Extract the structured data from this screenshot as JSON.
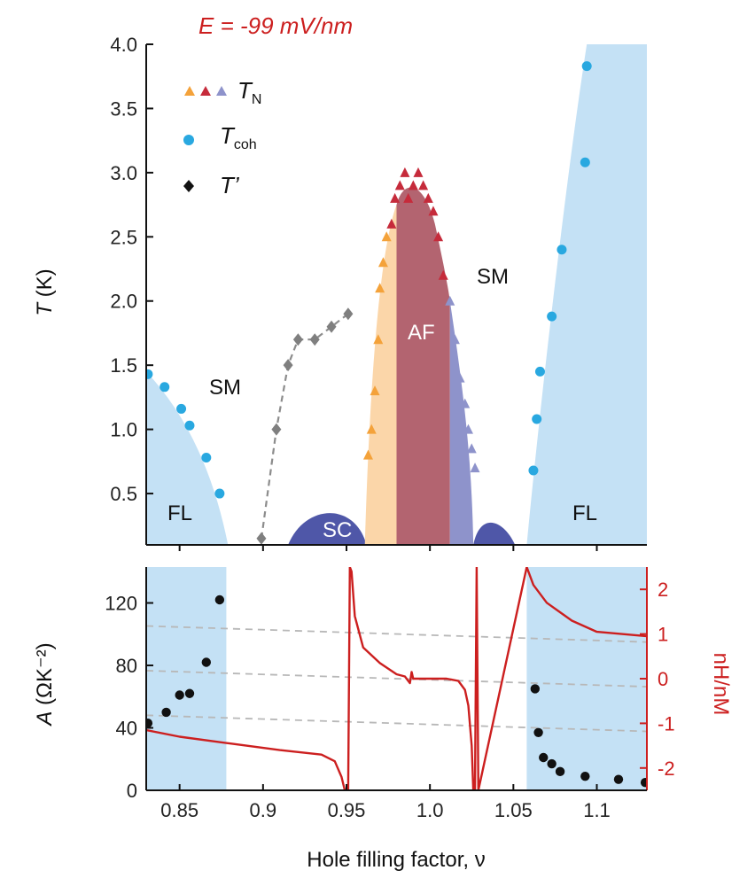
{
  "title": "E = -99 mV/nm",
  "colors": {
    "fl": "#c4e1f5",
    "sc": "#4f57a8",
    "af": "#b36470",
    "tn_orange": "#f4a23a",
    "tn_red": "#c62b3b",
    "tn_purple": "#8e93cb",
    "tcoh": "#29a8e0",
    "tprime": "#7f7f7f",
    "nh": "#cc1f1f"
  },
  "xaxis": {
    "label": "Hole filling factor, ν",
    "ticks": [
      "0.85",
      "0.9",
      "0.95",
      "1.0",
      "1.05",
      "1.1"
    ]
  },
  "regions": {
    "fl_left": "FL",
    "fl_right": "FL",
    "sm_left": "SM",
    "sm_right": "SM",
    "sc": "SC",
    "af": "AF"
  },
  "chart_data": [
    {
      "type": "scatter",
      "title": "E = -99 mV/nm",
      "ylabel": "T (K)",
      "xlim": [
        0.83,
        1.13
      ],
      "ylim": [
        0.1,
        4.0
      ],
      "yticks": [
        "0.5",
        "1.0",
        "1.5",
        "2.0",
        "2.5",
        "3.0",
        "3.5",
        "4.0"
      ],
      "legend": {
        "position": "top-left",
        "entries": [
          {
            "label": "T",
            "sub": "N",
            "marker": "triangle"
          },
          {
            "label": "T",
            "sub": "coh",
            "marker": "circle"
          },
          {
            "label": "T’",
            "sub": "",
            "marker": "diamond"
          }
        ]
      },
      "series": [
        {
          "marker": "triangle-orange",
          "x": [
            0.963,
            0.965,
            0.967,
            0.969,
            0.97,
            0.972,
            0.974
          ],
          "y": [
            0.8,
            1.0,
            1.3,
            1.7,
            2.1,
            2.3,
            2.5
          ]
        },
        {
          "marker": "triangle-red",
          "x": [
            0.977,
            0.979,
            0.982,
            0.985,
            0.987,
            0.99,
            0.993,
            0.996,
            0.999,
            1.002,
            1.005,
            1.008
          ],
          "y": [
            2.6,
            2.8,
            2.9,
            3.0,
            2.8,
            2.9,
            3.0,
            2.9,
            2.8,
            2.7,
            2.5,
            2.2
          ]
        },
        {
          "marker": "triangle-purple",
          "x": [
            1.012,
            1.015,
            1.018,
            1.021,
            1.023,
            1.025,
            1.027
          ],
          "y": [
            2.0,
            1.7,
            1.4,
            1.2,
            1.0,
            0.85,
            0.7
          ]
        },
        {
          "marker": "circle-blue-left",
          "x": [
            0.831,
            0.841,
            0.851,
            0.856,
            0.866,
            0.874
          ],
          "y": [
            1.43,
            1.33,
            1.16,
            1.03,
            0.78,
            0.5
          ]
        },
        {
          "marker": "circle-blue-right",
          "x": [
            1.062,
            1.064,
            1.066,
            1.073,
            1.079,
            1.093
          ],
          "y": [
            0.68,
            1.08,
            1.45,
            1.88,
            2.4,
            3.08
          ]
        },
        {
          "marker": "circle-blue-top",
          "x": [
            1.094
          ],
          "y": [
            3.83
          ]
        },
        {
          "marker": "diamond-gray",
          "x": [
            0.899,
            0.908,
            0.915,
            0.921,
            0.931,
            0.941,
            0.951
          ],
          "y": [
            0.15,
            1.0,
            1.5,
            1.7,
            1.7,
            1.8,
            1.9
          ]
        }
      ]
    },
    {
      "type": "scatter",
      "xlabel": "Hole filling factor, ν",
      "ylabel": "A (ΩK⁻²)",
      "y2label": "nH/nM",
      "xlim": [
        0.83,
        1.13
      ],
      "ylim": [
        0,
        143
      ],
      "y2lim": [
        -2.5,
        2.5
      ],
      "yticks": [
        "0",
        "40",
        "80",
        "120"
      ],
      "y2ticks": [
        "-2",
        "-1",
        "0",
        "1",
        "2"
      ],
      "series": [
        {
          "name": "A",
          "x": [
            0.831,
            0.842,
            0.85,
            0.856,
            0.866,
            0.874,
            1.063,
            1.065,
            1.068,
            1.073,
            1.078,
            1.093,
            1.113,
            1.129
          ],
          "y": [
            43,
            50,
            61,
            62,
            82,
            122,
            65,
            37,
            21,
            17,
            12,
            9,
            7,
            5
          ]
        },
        {
          "name": "nH/nM",
          "x": [
            0.83,
            0.85,
            0.88,
            0.91,
            0.935,
            0.943,
            0.947,
            0.949,
            0.951,
            0.952,
            0.953,
            0.955,
            0.96,
            0.97,
            0.98,
            0.985,
            0.988,
            0.989,
            0.99,
            1.0,
            1.01,
            1.017,
            1.021,
            1.023,
            1.025,
            1.026,
            1.027,
            1.028,
            1.029,
            1.058,
            1.062,
            1.07,
            1.085,
            1.1,
            1.13
          ],
          "y": [
            -1.15,
            -1.3,
            -1.45,
            -1.6,
            -1.7,
            -1.85,
            -2.2,
            -2.5,
            -2.5,
            2.5,
            2.4,
            1.4,
            0.7,
            0.35,
            0.1,
            0.05,
            -0.1,
            0.15,
            0.0,
            0.0,
            0.0,
            -0.05,
            -0.25,
            -0.6,
            -1.5,
            -2.5,
            -2.5,
            2.5,
            -2.5,
            2.5,
            2.1,
            1.7,
            1.3,
            1.05,
            0.95
          ]
        }
      ]
    }
  ]
}
